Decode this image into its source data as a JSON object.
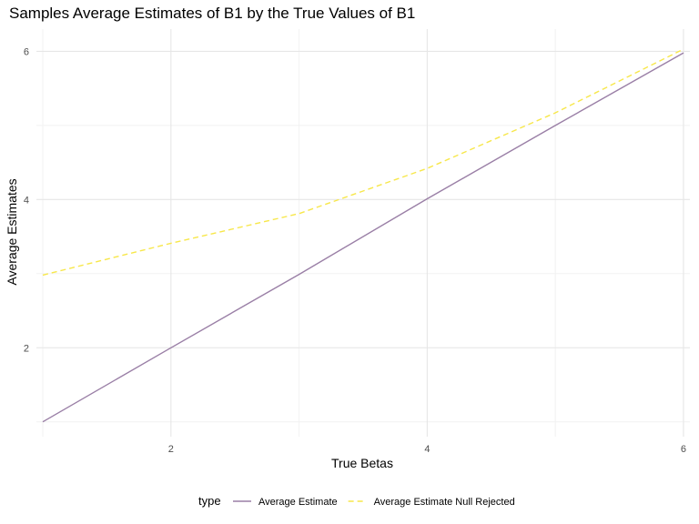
{
  "chart_data": {
    "type": "line",
    "title": "Samples Average Estimates of B1 by the True Values of B1",
    "xlabel": "True Betas",
    "ylabel": "Average Estimates",
    "xlim": [
      0.95,
      6.05
    ],
    "ylim": [
      0.8,
      6.3
    ],
    "x_ticks": [
      2,
      4,
      6
    ],
    "y_ticks": [
      2,
      4,
      6
    ],
    "grid": true,
    "legend_position": "bottom",
    "legend_title": "type",
    "x": [
      1,
      2,
      3,
      4,
      5,
      6
    ],
    "series": [
      {
        "name": "Average Estimate",
        "values": [
          1.0,
          2.0,
          2.99,
          4.01,
          5.0,
          5.98
        ],
        "color": "#9a7fa6",
        "dash": "solid"
      },
      {
        "name": "Average Estimate Null Rejected",
        "values": [
          2.98,
          3.41,
          3.81,
          4.42,
          5.17,
          6.03
        ],
        "color": "#f7e74a",
        "dash": "dashed"
      }
    ]
  }
}
